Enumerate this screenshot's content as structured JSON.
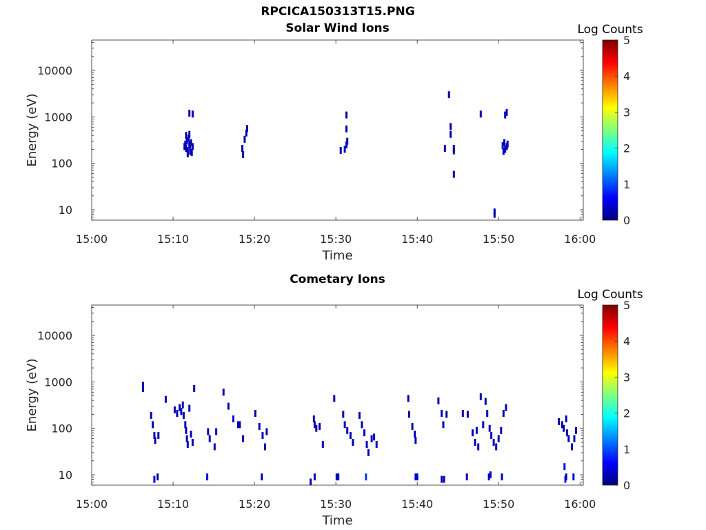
{
  "figure": {
    "title": "RPCICA150313T15.PNG"
  },
  "colormap_stops": [
    "#00007f",
    "#0000ff",
    "#007fff",
    "#00ffff",
    "#7fff7f",
    "#ffff00",
    "#ff7f00",
    "#ff0000",
    "#7f0000"
  ],
  "chart_data": [
    {
      "type": "heatmap",
      "title": "Solar Wind Ions",
      "xlabel": "Time",
      "ylabel": "Energy (eV)",
      "y_scale": "log",
      "x_range": [
        "15:00",
        "16:00"
      ],
      "x_ticks": [
        "15:00",
        "15:10",
        "15:20",
        "15:30",
        "15:40",
        "15:50",
        "16:00"
      ],
      "y_range": [
        6,
        45000
      ],
      "y_ticks": [
        10,
        100,
        1000,
        10000
      ],
      "y_tick_labels": [
        "10",
        "100",
        "1000",
        "10000"
      ],
      "colorbar": {
        "label": "Log Counts",
        "range": [
          0,
          5
        ],
        "ticks": [
          "0",
          "1",
          "2",
          "3",
          "4",
          "5"
        ]
      },
      "cells": [
        [
          11.4,
          230,
          0.3
        ],
        [
          11.5,
          260,
          0.3
        ],
        [
          11.6,
          210,
          0.3
        ],
        [
          11.7,
          300,
          0.3
        ],
        [
          11.8,
          190,
          0.3
        ],
        [
          11.9,
          350,
          0.3
        ],
        [
          12.0,
          250,
          0.3
        ],
        [
          12.1,
          220,
          0.3
        ],
        [
          12.2,
          280,
          0.3
        ],
        [
          12.3,
          170,
          0.3
        ],
        [
          11.6,
          400,
          0.2
        ],
        [
          12.0,
          420,
          0.2
        ],
        [
          11.8,
          160,
          0.3
        ],
        [
          12.1,
          180,
          0.3
        ],
        [
          12.4,
          230,
          0.3
        ],
        [
          12.0,
          1200,
          0.3
        ],
        [
          12.4,
          1150,
          0.3
        ],
        [
          18.5,
          210,
          0.2
        ],
        [
          18.6,
          155,
          0.2
        ],
        [
          18.8,
          330,
          0.2
        ],
        [
          19.0,
          450,
          0.2
        ],
        [
          19.1,
          560,
          0.2
        ],
        [
          30.6,
          190,
          0.2
        ],
        [
          31.1,
          200,
          0.3
        ],
        [
          31.3,
          250,
          0.3
        ],
        [
          31.4,
          300,
          0.2
        ],
        [
          31.3,
          550,
          0.2
        ],
        [
          31.3,
          1100,
          0.2
        ],
        [
          43.4,
          210,
          0.2
        ],
        [
          43.9,
          3000,
          0.2
        ],
        [
          44.1,
          620,
          0.2
        ],
        [
          44.1,
          420,
          0.2
        ],
        [
          44.5,
          210,
          0.2
        ],
        [
          44.5,
          185,
          0.2
        ],
        [
          44.5,
          58,
          0.2
        ],
        [
          47.8,
          1150,
          0.3
        ],
        [
          49.5,
          8,
          0.3
        ],
        [
          49.5,
          9,
          0.3
        ],
        [
          50.5,
          240,
          0.3
        ],
        [
          50.7,
          280,
          0.3
        ],
        [
          50.8,
          200,
          0.3
        ],
        [
          51.0,
          230,
          0.3
        ],
        [
          50.6,
          180,
          0.3
        ],
        [
          51.1,
          260,
          0.3
        ],
        [
          50.8,
          1100,
          0.3
        ],
        [
          51.0,
          1250,
          0.3
        ]
      ]
    },
    {
      "type": "heatmap",
      "title": "Cometary Ions",
      "xlabel": "Time",
      "ylabel": "Energy (eV)",
      "y_scale": "log",
      "x_range": [
        "15:00",
        "16:00"
      ],
      "x_ticks": [
        "15:00",
        "15:10",
        "15:20",
        "15:30",
        "15:40",
        "15:50",
        "16:00"
      ],
      "y_range": [
        6,
        45000
      ],
      "y_ticks": [
        10,
        100,
        1000,
        10000
      ],
      "y_tick_labels": [
        "10",
        "100",
        "1000",
        "10000"
      ],
      "colorbar": {
        "label": "Log Counts",
        "range": [
          0,
          5
        ],
        "ticks": [
          "0",
          "1",
          "2",
          "3",
          "4",
          "5"
        ]
      },
      "cells": [
        [
          6.3,
          850,
          0.3
        ],
        [
          6.3,
          720,
          0.3
        ],
        [
          7.3,
          190,
          0.3
        ],
        [
          7.5,
          120,
          0.3
        ],
        [
          7.7,
          70,
          0.3
        ],
        [
          7.8,
          55,
          0.3
        ],
        [
          8.2,
          70,
          0.2
        ],
        [
          9.1,
          420,
          0.3
        ],
        [
          10.2,
          250,
          0.3
        ],
        [
          10.5,
          210,
          0.3
        ],
        [
          10.8,
          280,
          0.3
        ],
        [
          11.0,
          230,
          0.3
        ],
        [
          11.2,
          320,
          0.3
        ],
        [
          11.3,
          190,
          0.3
        ],
        [
          11.5,
          120,
          0.3
        ],
        [
          11.6,
          90,
          0.3
        ],
        [
          11.7,
          60,
          0.3
        ],
        [
          11.8,
          45,
          0.3
        ],
        [
          12.0,
          270,
          0.3
        ],
        [
          12.2,
          75,
          0.3
        ],
        [
          12.4,
          50,
          0.3
        ],
        [
          12.6,
          720,
          0.2
        ],
        [
          14.3,
          85,
          0.3
        ],
        [
          14.5,
          60,
          0.3
        ],
        [
          15.1,
          40,
          0.3
        ],
        [
          15.3,
          85,
          0.3
        ],
        [
          16.2,
          600,
          0.3
        ],
        [
          16.8,
          300,
          0.3
        ],
        [
          17.4,
          160,
          0.3
        ],
        [
          18.0,
          120,
          0.3
        ],
        [
          18.2,
          120,
          0.2
        ],
        [
          18.6,
          60,
          0.2
        ],
        [
          20.1,
          210,
          0.2
        ],
        [
          20.6,
          110,
          0.3
        ],
        [
          21.0,
          70,
          0.3
        ],
        [
          21.3,
          40,
          0.3
        ],
        [
          21.5,
          85,
          0.3
        ],
        [
          27.3,
          160,
          0.2
        ],
        [
          27.4,
          120,
          0.2
        ],
        [
          27.6,
          100,
          0.2
        ],
        [
          28.0,
          110,
          0.3
        ],
        [
          28.4,
          45,
          0.3
        ],
        [
          29.8,
          440,
          0.3
        ],
        [
          30.9,
          200,
          0.3
        ],
        [
          31.1,
          120,
          0.3
        ],
        [
          31.4,
          90,
          0.3
        ],
        [
          31.8,
          70,
          0.3
        ],
        [
          32.1,
          50,
          0.3
        ],
        [
          32.9,
          190,
          0.3
        ],
        [
          33.2,
          120,
          0.3
        ],
        [
          33.5,
          80,
          0.3
        ],
        [
          33.8,
          45,
          0.3
        ],
        [
          34.0,
          30,
          0.4
        ],
        [
          34.4,
          60,
          0.3
        ],
        [
          34.7,
          65,
          0.3
        ],
        [
          35.0,
          45,
          0.3
        ],
        [
          38.9,
          440,
          0.2
        ],
        [
          39.0,
          200,
          0.2
        ],
        [
          39.4,
          110,
          0.2
        ],
        [
          39.7,
          75,
          0.3
        ],
        [
          39.8,
          55,
          0.3
        ],
        [
          42.6,
          390,
          0.2
        ],
        [
          43.0,
          210,
          0.3
        ],
        [
          43.2,
          120,
          0.3
        ],
        [
          43.6,
          200,
          0.2
        ],
        [
          45.6,
          210,
          0.2
        ],
        [
          46.2,
          200,
          0.3
        ],
        [
          46.8,
          80,
          0.3
        ],
        [
          47.1,
          50,
          0.3
        ],
        [
          47.3,
          90,
          0.3
        ],
        [
          47.5,
          40,
          0.3
        ],
        [
          47.8,
          480,
          0.3
        ],
        [
          48.1,
          120,
          0.3
        ],
        [
          48.4,
          380,
          0.2
        ],
        [
          48.6,
          210,
          0.3
        ],
        [
          48.9,
          100,
          0.3
        ],
        [
          49.1,
          70,
          0.3
        ],
        [
          49.4,
          50,
          0.3
        ],
        [
          49.7,
          40,
          0.3
        ],
        [
          50.0,
          60,
          0.3
        ],
        [
          50.3,
          90,
          0.3
        ],
        [
          50.6,
          210,
          0.3
        ],
        [
          50.9,
          280,
          0.3
        ],
        [
          57.4,
          140,
          0.2
        ],
        [
          57.8,
          120,
          0.2
        ],
        [
          58.0,
          100,
          0.3
        ],
        [
          58.3,
          160,
          0.3
        ],
        [
          58.4,
          80,
          0.3
        ],
        [
          58.6,
          60,
          0.3
        ],
        [
          59.0,
          40,
          0.3
        ],
        [
          59.3,
          60,
          0.3
        ],
        [
          59.5,
          90,
          0.3
        ],
        [
          58.1,
          15,
          0.6
        ],
        [
          58.2,
          8,
          0.8
        ],
        [
          7.7,
          8,
          0.4
        ],
        [
          8.1,
          9,
          0.3
        ],
        [
          14.2,
          9,
          0.5
        ],
        [
          20.9,
          9,
          0.3
        ],
        [
          26.9,
          7,
          0.3
        ],
        [
          27.4,
          9,
          0.3
        ],
        [
          30.1,
          9,
          0.4
        ],
        [
          30.3,
          9,
          0.3
        ],
        [
          33.7,
          9,
          0.9
        ],
        [
          39.8,
          9,
          0.6
        ],
        [
          40.0,
          9,
          0.4
        ],
        [
          43.0,
          8,
          0.3
        ],
        [
          43.3,
          8,
          0.3
        ],
        [
          46.1,
          9,
          0.3
        ],
        [
          48.8,
          9,
          0.3
        ],
        [
          49.0,
          10,
          0.4
        ],
        [
          50.4,
          9,
          0.3
        ],
        [
          58.3,
          9,
          0.3
        ],
        [
          59.2,
          9,
          0.4
        ]
      ]
    }
  ]
}
